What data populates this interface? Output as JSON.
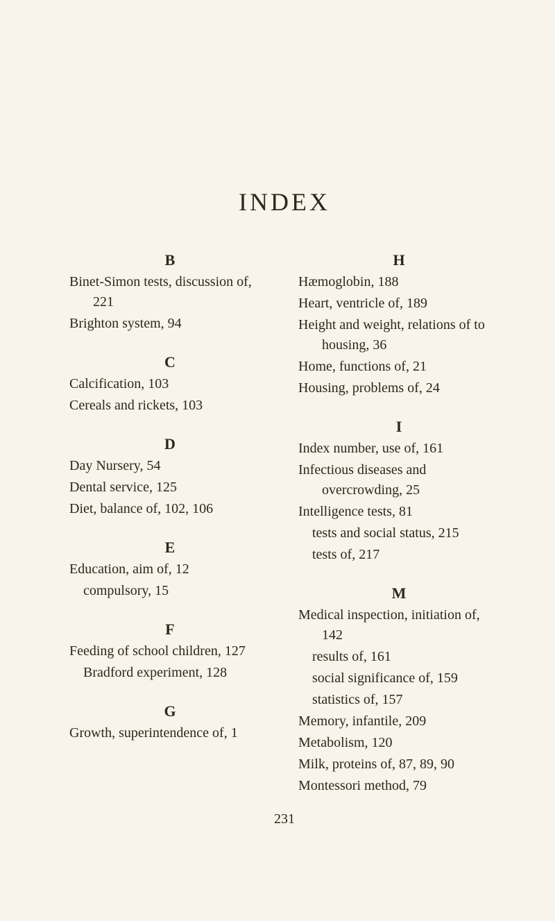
{
  "title": "INDEX",
  "page_number": "231",
  "left": {
    "B": {
      "letter": "B",
      "entries": [
        {
          "text": "Binet-Simon tests, discussion of, 221"
        },
        {
          "text": "Brighton system, 94"
        }
      ]
    },
    "C": {
      "letter": "C",
      "entries": [
        {
          "text": "Calcification, 103"
        },
        {
          "text": "Cereals and rickets, 103"
        }
      ]
    },
    "D": {
      "letter": "D",
      "entries": [
        {
          "text": "Day Nursery, 54"
        },
        {
          "text": "Dental service, 125"
        },
        {
          "text": "Diet, balance of, 102, 106"
        }
      ]
    },
    "E": {
      "letter": "E",
      "entries": [
        {
          "text": "Education, aim of, 12"
        },
        {
          "text": "compulsory, 15",
          "sub": true
        }
      ]
    },
    "F": {
      "letter": "F",
      "entries": [
        {
          "text": "Feeding of school children, 127"
        },
        {
          "text": "Bradford experiment, 128",
          "sub": true
        }
      ]
    },
    "G": {
      "letter": "G",
      "entries": [
        {
          "text": "Growth, superintendence of, 1"
        }
      ]
    }
  },
  "right": {
    "H": {
      "letter": "H",
      "entries": [
        {
          "text": "Hæmoglobin, 188"
        },
        {
          "text": "Heart, ventricle of, 189"
        },
        {
          "text": "Height and weight, relations of to housing, 36"
        },
        {
          "text": "Home, functions of, 21"
        },
        {
          "text": "Housing, problems of, 24"
        }
      ]
    },
    "I": {
      "letter": "I",
      "entries": [
        {
          "text": "Index number, use of, 161"
        },
        {
          "text": "Infectious diseases and overcrowding, 25"
        },
        {
          "text": "Intelligence tests, 81"
        },
        {
          "text": "tests and social status, 215",
          "sub": true
        },
        {
          "text": "tests of, 217",
          "sub": true
        }
      ]
    },
    "M": {
      "letter": "M",
      "entries": [
        {
          "text": "Medical inspection, initiation of, 142"
        },
        {
          "text": "results of, 161",
          "sub": true
        },
        {
          "text": "social significance of, 159",
          "sub": true
        },
        {
          "text": "statistics of, 157",
          "sub": true
        },
        {
          "text": "Memory, infantile, 209"
        },
        {
          "text": "Metabolism, 120"
        },
        {
          "text": "Milk, proteins of, 87, 89, 90"
        },
        {
          "text": "Montessori method, 79"
        }
      ]
    }
  }
}
